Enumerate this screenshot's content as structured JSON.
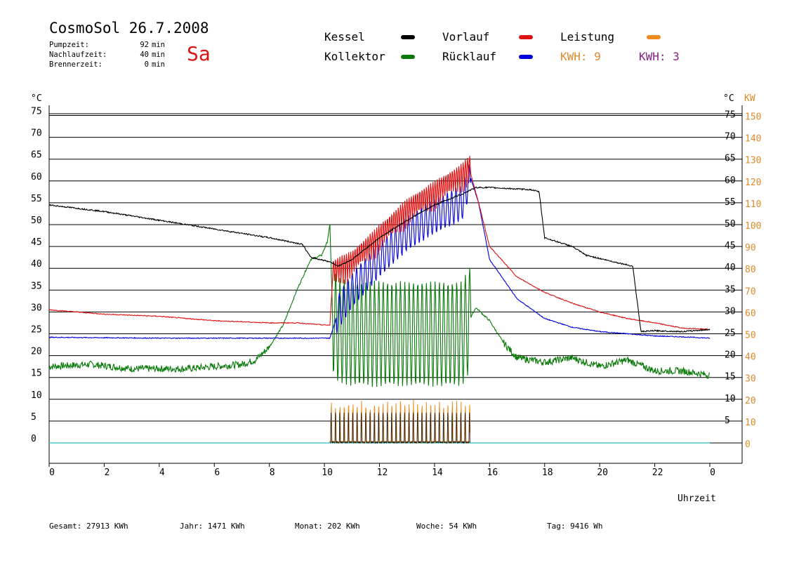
{
  "header": {
    "title": "CosmoSol 26.7.2008",
    "weekday": "Sa",
    "info": [
      {
        "label": "Pumpzeit:",
        "value": "92",
        "unit": "min"
      },
      {
        "label": "Nachlaufzeit:",
        "value": "40",
        "unit": "min"
      },
      {
        "label": "Brennerzeit:",
        "value": "0",
        "unit": "min"
      }
    ]
  },
  "legend": {
    "kessel": {
      "label": "Kessel",
      "color": "#000000"
    },
    "kollektor": {
      "label": "Kollektor",
      "color": "#0a7a0a"
    },
    "vorlauf": {
      "label": "Vorlauf",
      "color": "#dd1111"
    },
    "ruecklauf": {
      "label": "Rücklauf",
      "color": "#0000dd"
    },
    "leistung": {
      "label": "Leistung",
      "color": "#f08a1c"
    },
    "kwh1": {
      "text": "KWH: 9",
      "color": "#e08a2a"
    },
    "kwh2": {
      "text": "KWH: 3",
      "color": "#882288"
    }
  },
  "footer": {
    "gesamt": "Gesamt:  27913 KWh",
    "jahr": "Jahr:   1471 KWh",
    "monat": "Monat:    202 KWh",
    "woche": "Woche:     54 KWh",
    "tag": "Tag:   9416 Wh"
  },
  "chart_data": {
    "type": "line",
    "xlabel": "Uhrzeit",
    "ylabel_left": "°C",
    "ylabel_right_temp": "°C",
    "ylabel_right_power": "KW",
    "x_ticks": [
      "0",
      "2",
      "4",
      "6",
      "8",
      "10",
      "12",
      "14",
      "16",
      "18",
      "20",
      "22",
      "0"
    ],
    "xlim": [
      0,
      24
    ],
    "ylim": [
      0,
      80
    ],
    "y_ticks_left": [
      "0",
      "5",
      "10",
      "15",
      "20",
      "25",
      "30",
      "35",
      "40",
      "45",
      "50",
      "55",
      "60",
      "65",
      "70",
      "75"
    ],
    "y_ticks_right_temp": [
      "5",
      "10",
      "15",
      "20",
      "25",
      "30",
      "35",
      "40",
      "45",
      "50",
      "55",
      "60",
      "65",
      "70",
      "75"
    ],
    "y_ticks_right_power": [
      "0",
      "10",
      "20",
      "30",
      "40",
      "50",
      "60",
      "70",
      "80",
      "90",
      "100",
      "110",
      "120",
      "130",
      "140",
      "150"
    ],
    "grid": true,
    "series": [
      {
        "name": "Kessel",
        "color": "#000000",
        "x": [
          0,
          2,
          4,
          6,
          8,
          9.2,
          9.5,
          10.2,
          10.5,
          11,
          12,
          13,
          14,
          15,
          15.5,
          16,
          17.5,
          17.8,
          18,
          19,
          19.5,
          20.5,
          21.2,
          21.5,
          22,
          23,
          24
        ],
        "y": [
          54.5,
          53,
          51,
          49,
          47,
          45.5,
          42.5,
          41.5,
          40.5,
          42,
          47,
          51,
          54.5,
          57,
          58.5,
          58.5,
          58,
          57.5,
          47,
          45,
          43,
          41.5,
          40.5,
          25.5,
          25.7,
          25.5,
          26
        ]
      },
      {
        "name": "Vorlauf",
        "color": "#dd1111",
        "x": [
          0,
          2,
          4,
          6,
          8,
          9,
          10,
          10.2,
          10.3,
          11,
          12,
          13,
          14,
          15,
          15.3,
          15.6,
          16,
          17,
          18,
          19,
          20,
          21,
          22,
          23,
          24
        ],
        "y": [
          30.5,
          29.5,
          29,
          28,
          27.5,
          27.5,
          27,
          27,
          38,
          40,
          46,
          52,
          56,
          60,
          62,
          55,
          45,
          38,
          34.5,
          32,
          30,
          28.5,
          27.5,
          26.3,
          26
        ]
      },
      {
        "name": "Rücklauf",
        "color": "#0000dd",
        "x": [
          0,
          4,
          8,
          10,
          10.2,
          10.5,
          11,
          12,
          13,
          14,
          15,
          15.3,
          15.6,
          16,
          17,
          18,
          19,
          20,
          21,
          22,
          23,
          24
        ],
        "y": [
          24.2,
          24,
          24,
          24,
          24,
          30,
          35,
          42,
          48,
          52,
          55,
          61,
          55,
          42,
          33,
          28.5,
          26.5,
          25.5,
          25,
          24.5,
          24.3,
          24
        ]
      },
      {
        "name": "Kollektor",
        "color": "#0a7a0a",
        "x": [
          0,
          1.5,
          3,
          5,
          7,
          7.5,
          8,
          8.5,
          9,
          9.5,
          9.9,
          10.1,
          10.2,
          10.3,
          10.5,
          11,
          12,
          13,
          14,
          15,
          15.5,
          16,
          16.5,
          17,
          18,
          19,
          20,
          21,
          22,
          23,
          24
        ],
        "y": [
          17.5,
          18,
          17,
          17,
          18,
          19,
          22,
          27,
          35,
          42,
          43,
          46,
          50,
          28,
          26,
          25,
          25,
          25,
          25,
          25,
          31,
          28,
          23,
          19.5,
          18.5,
          19.5,
          17.5,
          19,
          16.5,
          16.5,
          15.5
        ]
      }
    ],
    "leistung": {
      "name": "Leistung",
      "color": "#f08a1c",
      "x_range": [
        10.2,
        15.3
      ],
      "max_kw": 18
    },
    "baseline": {
      "y": 0,
      "color": "#48c9c9"
    }
  }
}
